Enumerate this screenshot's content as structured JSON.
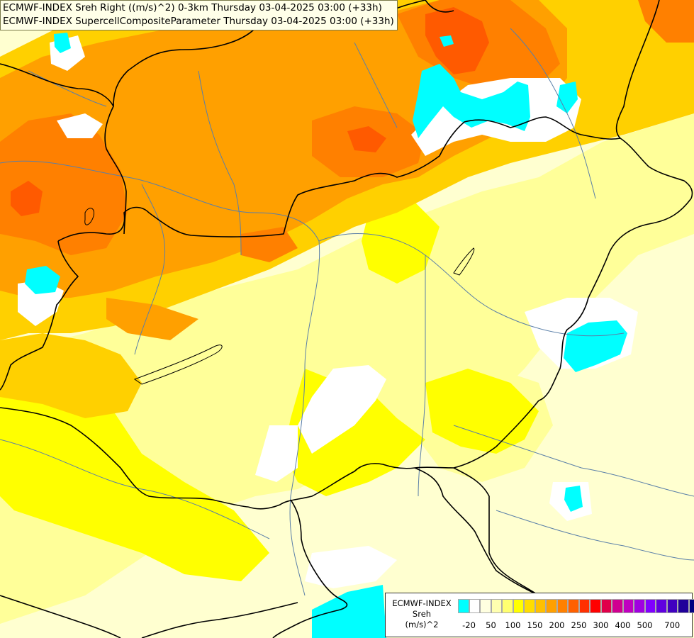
{
  "header": {
    "line1": "ECMWF-INDEX Sreh Right ((m/s)^2) 0-3km Thursday 03-04-2025 03:00 (+33h)",
    "line2": "ECMWF-INDEX SupercellCompositeParameter Thursday 03-04-2025 03:00 (+33h)"
  },
  "legend": {
    "title1": "ECMWF-INDEX",
    "title2": "Sreh",
    "title3": "(m/s)^2",
    "colors": [
      "#00ffff",
      "#ffffff",
      "#ffffe0",
      "#ffffb0",
      "#ffff70",
      "#ffff00",
      "#ffdd00",
      "#ffc000",
      "#ffa000",
      "#ff8000",
      "#ff6000",
      "#ff3000",
      "#ff0000",
      "#e0004a",
      "#d00090",
      "#c000c0",
      "#a000e0",
      "#8000ff",
      "#6000e0",
      "#4000c0",
      "#20009a",
      "#000080"
    ],
    "ticks": [
      "-20",
      "50",
      "100",
      "150",
      "200",
      "250",
      "300",
      "400",
      "500",
      "700"
    ]
  },
  "colors": {
    "cyan": "#00ffff",
    "white": "#ffffff",
    "pale_yellow": "#ffffd0",
    "light_yellow": "#ffff99",
    "yellow": "#ffff00",
    "gold": "#ffd000",
    "orange_light": "#ffb000",
    "orange": "#ff9000",
    "orange_dark": "#ff6a00",
    "red_orange": "#ff4000",
    "border": "#000000",
    "river": "#5a7fa8"
  },
  "icons": {
    "legend": "color-scale"
  }
}
